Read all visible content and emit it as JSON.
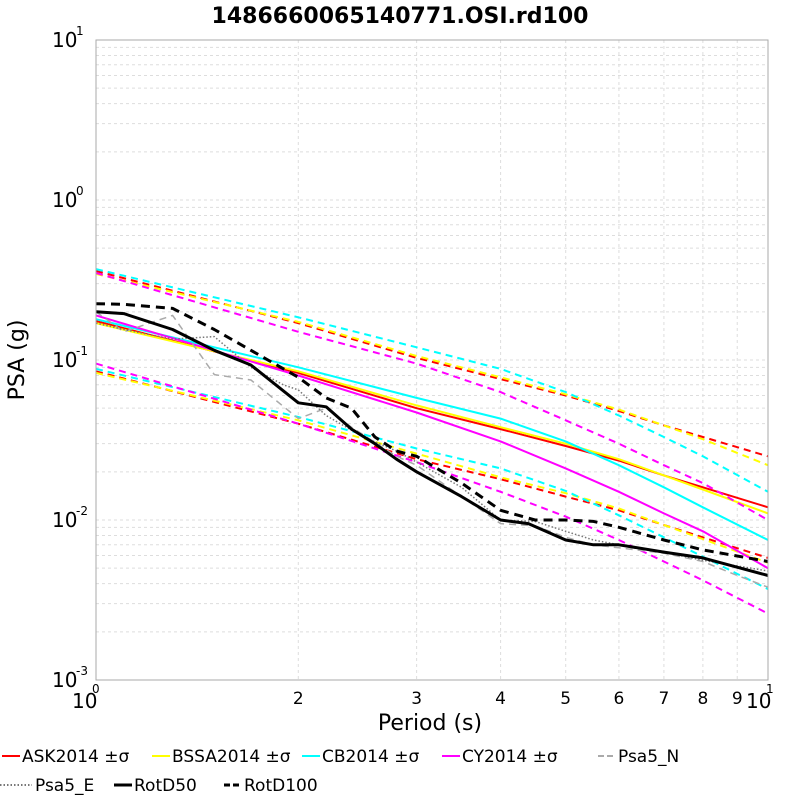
{
  "chart_data": {
    "type": "line",
    "title": "1486660065140771.OSI.rd100",
    "xlabel": "Period (s)",
    "ylabel": "PSA (g)",
    "x_scale": "log",
    "y_scale": "log",
    "xlim": [
      1,
      10
    ],
    "ylim": [
      0.001,
      10
    ],
    "grid": true,
    "legend_position": "bottom",
    "x_ticks_major": [
      {
        "base": "10",
        "exp": "0"
      },
      {
        "base": "10",
        "exp": "1"
      }
    ],
    "x_ticks_minor": [
      "2",
      "3",
      "4",
      "5",
      "6",
      "7",
      "8",
      "9"
    ],
    "y_ticks": [
      {
        "value": 10,
        "base": "10",
        "exp": "1"
      },
      {
        "value": 1,
        "base": "10",
        "exp": "0"
      },
      {
        "value": 0.1,
        "base": "10",
        "exp": "-1"
      },
      {
        "value": 0.01,
        "base": "10",
        "exp": "-2"
      },
      {
        "value": 0.001,
        "base": "10",
        "exp": "-3"
      }
    ],
    "legend": [
      {
        "label": "ASK2014 ±σ",
        "color": "#ff0000",
        "style": "solid"
      },
      {
        "label": "BSSA2014 ±σ",
        "color": "#ffff00",
        "style": "solid"
      },
      {
        "label": "CB2014 ±σ",
        "color": "#00ffff",
        "style": "solid"
      },
      {
        "label": "CY2014 ±σ",
        "color": "#ff00ff",
        "style": "solid"
      },
      {
        "label": "Psa5_N",
        "color": "#aaaaaa",
        "style": "dashed"
      },
      {
        "label": "Psa5_E",
        "color": "#777777",
        "style": "dotted"
      },
      {
        "label": "RotD50",
        "color": "#000000",
        "style": "solid"
      },
      {
        "label": "RotD100",
        "color": "#000000",
        "style": "dashed"
      }
    ],
    "series": [
      {
        "key": "ask_med",
        "color": "#ff0000",
        "style": "solid",
        "width": 2,
        "x": [
          1,
          2,
          3,
          4,
          5,
          6,
          7,
          8,
          10
        ],
        "y": [
          0.175,
          0.083,
          0.05,
          0.037,
          0.029,
          0.0235,
          0.019,
          0.016,
          0.012
        ]
      },
      {
        "key": "ask_plus",
        "color": "#ff0000",
        "style": "dashed",
        "width": 2,
        "x": [
          1,
          2,
          3,
          4,
          5,
          6,
          7,
          8,
          10
        ],
        "y": [
          0.36,
          0.17,
          0.103,
          0.076,
          0.06,
          0.048,
          0.039,
          0.033,
          0.025
        ]
      },
      {
        "key": "ask_minus",
        "color": "#ff0000",
        "style": "dashed",
        "width": 2,
        "x": [
          1,
          2,
          3,
          4,
          5,
          6,
          7,
          8,
          10
        ],
        "y": [
          0.085,
          0.04,
          0.024,
          0.018,
          0.014,
          0.0115,
          0.0093,
          0.0078,
          0.0058
        ]
      },
      {
        "key": "bssa_med",
        "color": "#ffff00",
        "style": "solid",
        "width": 2,
        "x": [
          1,
          2,
          3,
          4,
          5,
          6,
          7,
          8,
          10
        ],
        "y": [
          0.17,
          0.085,
          0.052,
          0.038,
          0.03,
          0.024,
          0.019,
          0.0155,
          0.011
        ]
      },
      {
        "key": "bssa_plus",
        "color": "#ffff00",
        "style": "dashed",
        "width": 2,
        "x": [
          1,
          2,
          3,
          4,
          5,
          6,
          7,
          8,
          10
        ],
        "y": [
          0.345,
          0.173,
          0.106,
          0.078,
          0.061,
          0.049,
          0.039,
          0.032,
          0.022
        ]
      },
      {
        "key": "bssa_minus",
        "color": "#ffff00",
        "style": "dashed",
        "width": 2,
        "x": [
          1,
          2,
          3,
          4,
          5,
          6,
          7,
          8,
          10
        ],
        "y": [
          0.083,
          0.042,
          0.026,
          0.0185,
          0.0147,
          0.0118,
          0.0093,
          0.0076,
          0.0054
        ]
      },
      {
        "key": "cb_med",
        "color": "#00ffff",
        "style": "solid",
        "width": 2,
        "x": [
          1,
          2,
          3,
          4,
          5,
          6,
          7,
          8,
          10
        ],
        "y": [
          0.18,
          0.09,
          0.058,
          0.043,
          0.031,
          0.022,
          0.016,
          0.012,
          0.0075
        ]
      },
      {
        "key": "cb_plus",
        "color": "#00ffff",
        "style": "dashed",
        "width": 2,
        "x": [
          1,
          2,
          3,
          4,
          5,
          6,
          7,
          8,
          10
        ],
        "y": [
          0.37,
          0.185,
          0.12,
          0.088,
          0.063,
          0.045,
          0.033,
          0.025,
          0.015
        ]
      },
      {
        "key": "cb_minus",
        "color": "#00ffff",
        "style": "dashed",
        "width": 2,
        "x": [
          1,
          2,
          3,
          4,
          5,
          6,
          7,
          8,
          10
        ],
        "y": [
          0.088,
          0.044,
          0.028,
          0.021,
          0.0152,
          0.0107,
          0.0078,
          0.0059,
          0.0037
        ]
      },
      {
        "key": "cy_med",
        "color": "#ff00ff",
        "style": "solid",
        "width": 2,
        "x": [
          1,
          2,
          3,
          4,
          5,
          6,
          7,
          8,
          10
        ],
        "y": [
          0.19,
          0.08,
          0.047,
          0.031,
          0.021,
          0.015,
          0.011,
          0.0085,
          0.005
        ]
      },
      {
        "key": "cy_plus",
        "color": "#ff00ff",
        "style": "dashed",
        "width": 2,
        "x": [
          1,
          2,
          3,
          4,
          5,
          6,
          7,
          8,
          10
        ],
        "y": [
          0.35,
          0.15,
          0.095,
          0.063,
          0.042,
          0.03,
          0.022,
          0.017,
          0.01
        ]
      },
      {
        "key": "cy_minus",
        "color": "#ff00ff",
        "style": "dashed",
        "width": 2,
        "x": [
          1,
          2,
          3,
          4,
          5,
          6,
          7,
          8,
          10
        ],
        "y": [
          0.095,
          0.04,
          0.023,
          0.015,
          0.0105,
          0.0075,
          0.0055,
          0.0042,
          0.0026
        ]
      },
      {
        "key": "psa5_n",
        "color": "#aaaaaa",
        "style": "dashed",
        "width": 1.5,
        "x": [
          1,
          1.1,
          1.3,
          1.5,
          1.7,
          2.0,
          2.2,
          2.4,
          2.8,
          3.0,
          3.5,
          4.0,
          4.5,
          5.0,
          5.5,
          6.0,
          7.0,
          8.0,
          9.0,
          10.0
        ],
        "y": [
          0.2,
          0.15,
          0.19,
          0.081,
          0.075,
          0.043,
          0.05,
          0.038,
          0.025,
          0.022,
          0.014,
          0.0095,
          0.0092,
          0.0078,
          0.007,
          0.0067,
          0.0062,
          0.0055,
          0.0045,
          0.0038
        ]
      },
      {
        "key": "psa5_e",
        "color": "#777777",
        "style": "dotted",
        "width": 1.5,
        "x": [
          1,
          1.1,
          1.3,
          1.5,
          1.7,
          1.9,
          2.0,
          2.2,
          2.5,
          2.8,
          3.0,
          3.5,
          4.0,
          4.5,
          5.0,
          5.5,
          6.0,
          7.0,
          8.0,
          10.0
        ],
        "y": [
          0.17,
          0.155,
          0.135,
          0.14,
          0.09,
          0.07,
          0.065,
          0.045,
          0.033,
          0.027,
          0.023,
          0.016,
          0.01,
          0.0098,
          0.0085,
          0.0075,
          0.007,
          0.0063,
          0.0056,
          0.0048
        ]
      },
      {
        "key": "rotd50",
        "color": "#000000",
        "style": "solid",
        "width": 3,
        "x": [
          1,
          1.1,
          1.3,
          1.5,
          1.7,
          2.0,
          2.2,
          2.4,
          2.6,
          2.8,
          3.0,
          3.5,
          4.0,
          4.4,
          5.0,
          5.5,
          6.0,
          7.0,
          8.0,
          10.0
        ],
        "y": [
          0.2,
          0.195,
          0.155,
          0.115,
          0.093,
          0.054,
          0.051,
          0.037,
          0.03,
          0.024,
          0.02,
          0.014,
          0.01,
          0.0095,
          0.0075,
          0.007,
          0.007,
          0.0063,
          0.0058,
          0.0045
        ]
      },
      {
        "key": "rotd100",
        "color": "#000000",
        "style": "dashed",
        "width": 3,
        "x": [
          1,
          1.1,
          1.3,
          1.5,
          1.7,
          2.0,
          2.2,
          2.4,
          2.6,
          2.8,
          3.0,
          3.5,
          4.0,
          4.5,
          5.0,
          5.5,
          6.0,
          7.0,
          8.0,
          10.0
        ],
        "y": [
          0.225,
          0.223,
          0.21,
          0.155,
          0.115,
          0.078,
          0.058,
          0.05,
          0.033,
          0.027,
          0.025,
          0.017,
          0.0115,
          0.01,
          0.01,
          0.0098,
          0.009,
          0.0075,
          0.0065,
          0.0055
        ]
      }
    ]
  }
}
